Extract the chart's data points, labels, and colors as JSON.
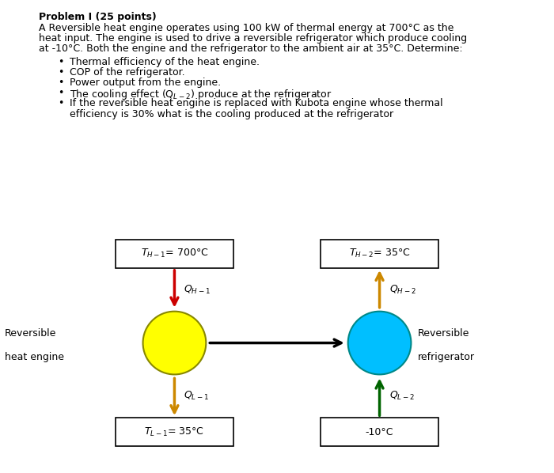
{
  "title": "Problem I (25 points)",
  "body_lines": [
    "A Reversible heat engine operates using 100 kW of thermal energy at 700°C as the",
    "heat input. The engine is used to drive a reversible refrigerator which produce cooling",
    "at -10°C. Both the engine and the refrigerator to the ambient air at 35°C. Determine:"
  ],
  "bullets": [
    "Thermal efficiency of the heat engine.",
    "COP of the refrigerator.",
    "Power output from the engine.",
    "The cooling effect (Q$_{L-2}$) produce at the refrigerator",
    "If the reversible heat engine is replaced with Kubota engine whose thermal"
  ],
  "bullet5_line2": "efficiency is 30% what is the cooling produced at the refrigerator",
  "box1_label": "$T_{H-1}$= 700°C",
  "box2_label": "$T_{H-2}$= 35°C",
  "box3_label": "$T_{L-1}$= 35°C",
  "box4_label": "-10°C",
  "engine_label1": "Reversible",
  "engine_label2": "heat engine",
  "refrig_label1": "Reversible",
  "refrig_label2": "refrigerator",
  "qh1_label": "$Q_{H-1}$",
  "ql1_label": "$Q_{L-1}$",
  "qh2_label": "$Q_{H-2}$",
  "ql2_label": "$Q_{L-2}$",
  "engine_color": "#FFFF00",
  "refrig_color": "#00BFFF",
  "arrow_qh1_color": "#CC0000",
  "arrow_ql1_color": "#CC8800",
  "arrow_qh2_color": "#CC8800",
  "arrow_ql2_color": "#006400",
  "arrow_work_color": "#000000",
  "background_color": "#FFFFFF",
  "text_fontsize": 9,
  "title_fontsize": 9,
  "label_fontsize": 9
}
